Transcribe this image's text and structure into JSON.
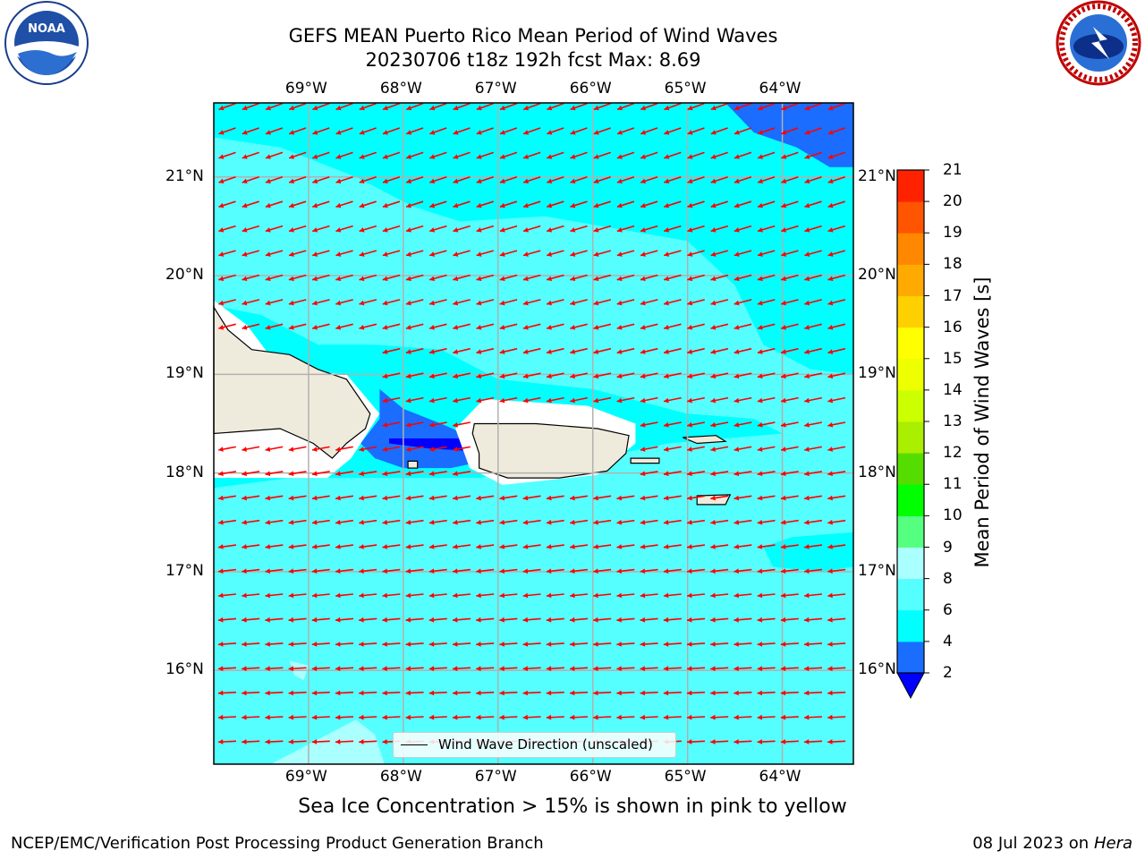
{
  "header": {
    "title_line1": "GEFS MEAN Puerto Rico Mean Period of Wind Waves",
    "title_line2": "20230706 t18z 192h fcst   Max: 8.69"
  },
  "logos": {
    "left": {
      "icon": "noaa-logo",
      "text": "NOAA"
    },
    "right": {
      "icon": "nws-logo"
    }
  },
  "map": {
    "lon_ticks": [
      "69°W",
      "68°W",
      "67°W",
      "66°W",
      "65°W",
      "64°W"
    ],
    "lat_ticks": [
      "21°N",
      "20°N",
      "19°N",
      "18°N",
      "17°N",
      "16°N"
    ],
    "lon_range": [
      -70,
      -63.25
    ],
    "lat_range": [
      15.05,
      21.75
    ],
    "legend_label": "Wind Wave Direction (unscaled)",
    "arrow_color": "#ff0000",
    "land_color": "#efebdc",
    "ocean_base_color": "#55ffff"
  },
  "colorbar": {
    "title": "Mean Period of Wind Waves [s]",
    "levels": [
      "2",
      "4",
      "6",
      "8",
      "9",
      "10",
      "11",
      "12",
      "13",
      "14",
      "15",
      "16",
      "17",
      "18",
      "19",
      "20",
      "21"
    ],
    "colors": [
      "#1a6dff",
      "#00ffff",
      "#55ffff",
      "#aaffff",
      "#55ff80",
      "#00ff00",
      "#55dd00",
      "#aaee00",
      "#ccff00",
      "#eeff00",
      "#ffff00",
      "#ffd000",
      "#ffaa00",
      "#ff8800",
      "#ff5500",
      "#ff2200"
    ],
    "under_color": "#0000ff"
  },
  "caption": "Sea Ice Concentration > 15% is shown in pink to yellow",
  "footer": {
    "left": "NCEP/EMC/Verification Post Processing Product Generation Branch",
    "right_prefix": "08 Jul 2023 on ",
    "right_host": "Hera"
  }
}
